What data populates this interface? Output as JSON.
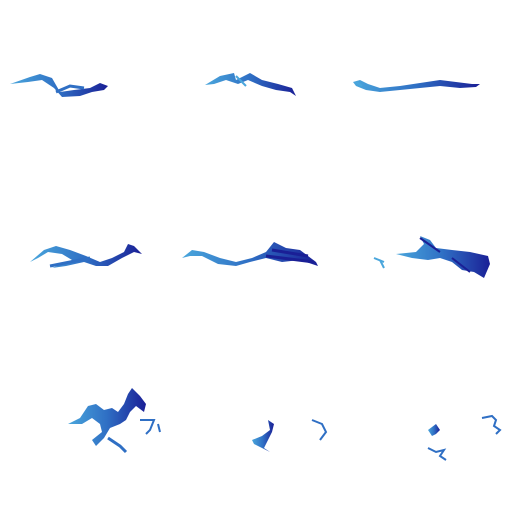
{
  "image": {
    "description_key": "grid-of-nine-blue-ribbon-strokes",
    "background": "#ffffff",
    "palette": {
      "light": "#4aa6dc",
      "mid": "#2f6fc4",
      "dark": "#1a1f96"
    },
    "grid": {
      "rows": 3,
      "cols": 3
    }
  }
}
